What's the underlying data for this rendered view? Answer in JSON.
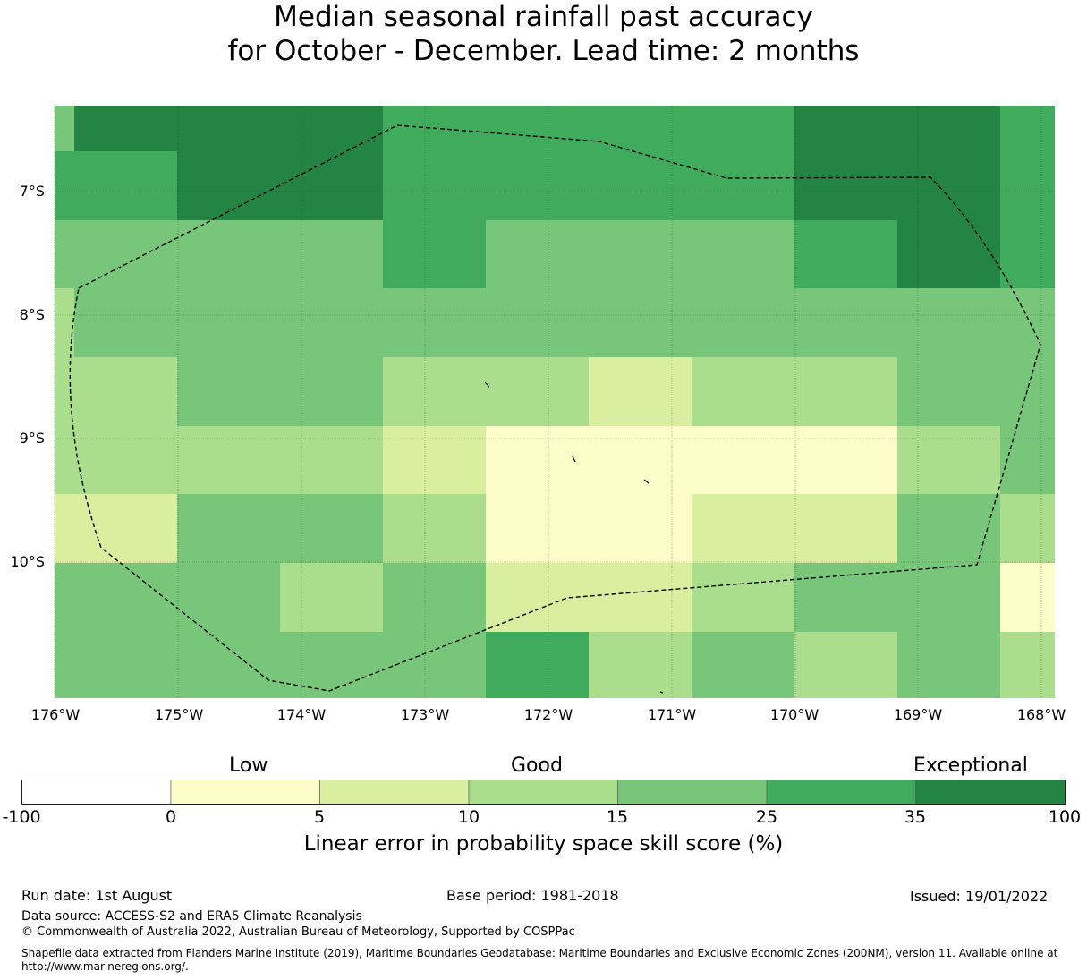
{
  "title": {
    "line1": "Median seasonal rainfall past accuracy",
    "line2": "for October - December. Lead time: 2 months"
  },
  "map": {
    "lat_labels": [
      "7°S",
      "8°S",
      "9°S",
      "10°S"
    ],
    "lon_labels": [
      "176°W",
      "175°W",
      "174°W",
      "173°W",
      "172°W",
      "171°W",
      "170°W",
      "169°W",
      "168°W"
    ],
    "legend_colors": [
      "#ffffff",
      "#fdfdca",
      "#daeea0",
      "#aadd8c",
      "#78c679",
      "#41ab5d",
      "#238443"
    ],
    "grid_bins": [
      [
        4,
        6,
        6,
        6,
        5,
        5,
        5,
        5,
        6,
        6,
        5
      ],
      [
        5,
        5,
        6,
        6,
        5,
        5,
        5,
        5,
        6,
        6,
        5
      ],
      [
        4,
        4,
        4,
        4,
        5,
        4,
        4,
        4,
        5,
        6,
        5
      ],
      [
        3,
        4,
        4,
        4,
        4,
        4,
        4,
        4,
        4,
        4,
        4
      ],
      [
        3,
        3,
        4,
        4,
        3,
        3,
        2,
        3,
        3,
        4,
        4
      ],
      [
        3,
        3,
        3,
        3,
        2,
        1,
        1,
        1,
        1,
        3,
        4
      ],
      [
        2,
        2,
        4,
        4,
        3,
        1,
        1,
        2,
        2,
        4,
        3
      ],
      [
        4,
        4,
        4,
        3,
        4,
        2,
        2,
        3,
        4,
        4,
        1
      ],
      [
        4,
        4,
        4,
        4,
        4,
        5,
        3,
        4,
        3,
        4,
        3
      ]
    ]
  },
  "colorbar": {
    "categories": [
      "Low",
      "Good",
      "Exceptional"
    ],
    "ticks": [
      "-100",
      "0",
      "5",
      "10",
      "15",
      "25",
      "35",
      "100"
    ],
    "colors": [
      "#ffffff",
      "#fdfdca",
      "#daeea0",
      "#aadd8c",
      "#78c679",
      "#41ab5d",
      "#238443"
    ],
    "label": "Linear error in probability space skill score (%)"
  },
  "footer": {
    "run_date": "Run date: 1st August",
    "base_period": "Base period: 1981-2018",
    "issued": "Issued: 19/01/2022",
    "data_source": "Data source: ACCESS-S2 and ERA5 Climate Reanalysis",
    "copyright": "© Commonwealth of Australia 2022, Australian Bureau of Meteorology, Supported by COSPPac",
    "shapefile": "Shapefile data extracted from Flanders Marine Institute (2019), Maritime Boundaries Geodatabase: Maritime Boundaries and Exclusive Economic Zones (200NM), version 11. Available online at http://www.marineregions.org/."
  }
}
